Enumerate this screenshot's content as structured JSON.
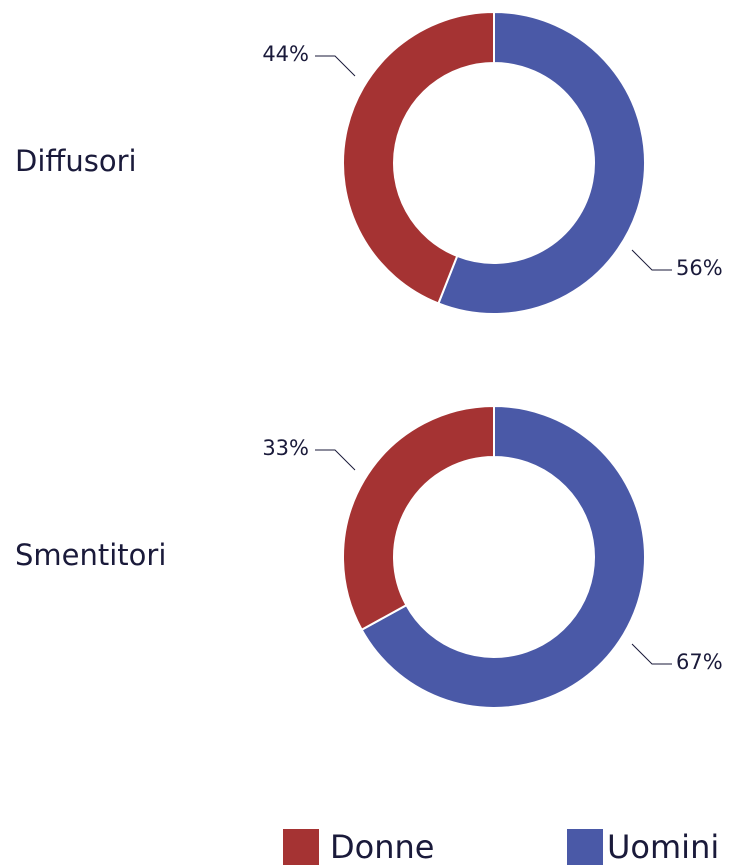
{
  "chart_data": [
    {
      "type": "pie",
      "title": "Diffusori",
      "categories": [
        "Uomini",
        "Donne"
      ],
      "values": [
        56,
        44
      ],
      "value_labels": [
        "56%",
        "44%"
      ],
      "colors": [
        "#4a59a7",
        "#a53333"
      ]
    },
    {
      "type": "pie",
      "title": "Smentitori",
      "categories": [
        "Uomini",
        "Donne"
      ],
      "values": [
        67,
        33
      ],
      "value_labels": [
        "67%",
        "33%"
      ],
      "colors": [
        "#4a59a7",
        "#a53333"
      ]
    }
  ]
}
